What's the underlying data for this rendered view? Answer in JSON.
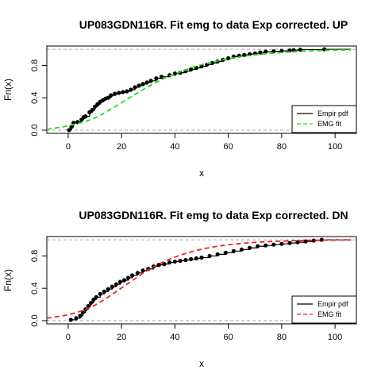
{
  "chart_data": [
    {
      "type": "line",
      "title": "UP083GDN116R. Fit emg to data Exp corrected. UP",
      "xlabel": "x",
      "ylabel": "Fn(x)",
      "xlim": [
        -8,
        108
      ],
      "ylim": [
        -0.04,
        1.04
      ],
      "xticks": [
        "0",
        "20",
        "40",
        "60",
        "80",
        "100"
      ],
      "yticks": [
        "0.0",
        "0.4",
        "0.8"
      ],
      "grid": false,
      "reference_lines_y": [
        0,
        1
      ],
      "legend": {
        "placement": "bottom-right",
        "entries": [
          "Empir pdf",
          "EMG fit"
        ]
      },
      "fit_color": "#22dd22",
      "empirical": {
        "x": [
          0.3,
          1.2,
          2.0,
          3.5,
          5.0,
          5.8,
          6.5,
          8.0,
          9.0,
          10.0,
          11.0,
          12.0,
          13.0,
          14.0,
          15.0,
          16.0,
          17.5,
          19.0,
          20.5,
          22.0,
          23.5,
          25.0,
          26.5,
          28.0,
          29.5,
          31.0,
          33.0,
          35.0,
          38.0,
          40.0,
          42.0,
          44.0,
          46.0,
          48.0,
          50.0,
          52.0,
          54.0,
          56.0,
          58.0,
          60.0,
          62.0,
          64.0,
          66.0,
          68.0,
          70.0,
          72.0,
          74.0,
          77.0,
          80.0,
          83.0,
          84.5,
          87.0,
          96.0
        ],
        "y": [
          0.0,
          0.04,
          0.09,
          0.1,
          0.13,
          0.16,
          0.17,
          0.22,
          0.25,
          0.29,
          0.32,
          0.35,
          0.37,
          0.39,
          0.4,
          0.43,
          0.45,
          0.46,
          0.47,
          0.48,
          0.5,
          0.53,
          0.55,
          0.57,
          0.59,
          0.61,
          0.64,
          0.66,
          0.68,
          0.7,
          0.71,
          0.73,
          0.75,
          0.77,
          0.79,
          0.81,
          0.83,
          0.85,
          0.87,
          0.89,
          0.91,
          0.92,
          0.93,
          0.94,
          0.95,
          0.96,
          0.97,
          0.975,
          0.98,
          0.985,
          0.99,
          0.995,
          1.0
        ]
      },
      "fit": {
        "x": [
          -8,
          -2,
          2,
          6,
          10,
          14,
          18,
          22,
          26,
          30,
          34,
          38,
          42,
          46,
          50,
          54,
          58,
          62,
          66,
          70,
          74,
          78,
          82,
          86,
          90,
          94,
          98,
          102,
          106
        ],
        "y": [
          0.01,
          0.04,
          0.07,
          0.1,
          0.15,
          0.22,
          0.3,
          0.38,
          0.46,
          0.54,
          0.61,
          0.67,
          0.72,
          0.77,
          0.81,
          0.84,
          0.87,
          0.895,
          0.915,
          0.93,
          0.945,
          0.955,
          0.965,
          0.972,
          0.978,
          0.983,
          0.987,
          0.99,
          0.992
        ]
      }
    },
    {
      "type": "line",
      "title": "UP083GDN116R. Fit emg to data Exp corrected. DN",
      "xlabel": "x",
      "ylabel": "Fn(x)",
      "xlim": [
        -8,
        108
      ],
      "ylim": [
        -0.04,
        1.04
      ],
      "xticks": [
        "0",
        "20",
        "40",
        "60",
        "80",
        "100"
      ],
      "yticks": [
        "0.0",
        "0.4",
        "0.8"
      ],
      "grid": false,
      "reference_lines_y": [
        0,
        1
      ],
      "legend": {
        "placement": "bottom-right",
        "entries": [
          "Empir pdf",
          "EMG fit"
        ]
      },
      "fit_color": "#ee2222",
      "empirical": {
        "x": [
          1.0,
          3.0,
          4.5,
          5.5,
          6.5,
          7.5,
          8.5,
          9.5,
          10.5,
          12.0,
          13.5,
          15.0,
          16.5,
          18.0,
          19.5,
          21.0,
          22.5,
          24.0,
          26.0,
          28.0,
          30.0,
          32.0,
          34.0,
          36.0,
          38.0,
          40.0,
          42.0,
          44.0,
          46.0,
          48.0,
          50.0,
          53.0,
          56.0,
          59.0,
          62.0,
          65.0,
          68.0,
          71.0,
          74.0,
          77.0,
          80.0,
          83.0,
          86.0,
          89.0,
          92.0,
          95.0
        ],
        "y": [
          0.01,
          0.03,
          0.06,
          0.1,
          0.14,
          0.18,
          0.22,
          0.26,
          0.29,
          0.33,
          0.36,
          0.39,
          0.42,
          0.45,
          0.48,
          0.5,
          0.53,
          0.56,
          0.59,
          0.62,
          0.64,
          0.67,
          0.69,
          0.7,
          0.72,
          0.73,
          0.74,
          0.75,
          0.76,
          0.77,
          0.78,
          0.8,
          0.82,
          0.84,
          0.86,
          0.88,
          0.9,
          0.92,
          0.93,
          0.94,
          0.95,
          0.96,
          0.97,
          0.98,
          0.99,
          1.0
        ]
      },
      "fit": {
        "x": [
          -8,
          -2,
          2,
          6,
          10,
          14,
          18,
          22,
          26,
          30,
          34,
          38,
          42,
          46,
          50,
          54,
          58,
          62,
          66,
          70,
          74,
          78,
          82,
          86,
          90,
          94,
          98,
          102,
          106
        ],
        "y": [
          0.03,
          0.06,
          0.09,
          0.13,
          0.19,
          0.27,
          0.36,
          0.45,
          0.54,
          0.63,
          0.7,
          0.76,
          0.81,
          0.85,
          0.885,
          0.91,
          0.93,
          0.945,
          0.958,
          0.968,
          0.975,
          0.981,
          0.986,
          0.99,
          0.993,
          0.995,
          0.996,
          0.997,
          0.998
        ]
      }
    }
  ]
}
